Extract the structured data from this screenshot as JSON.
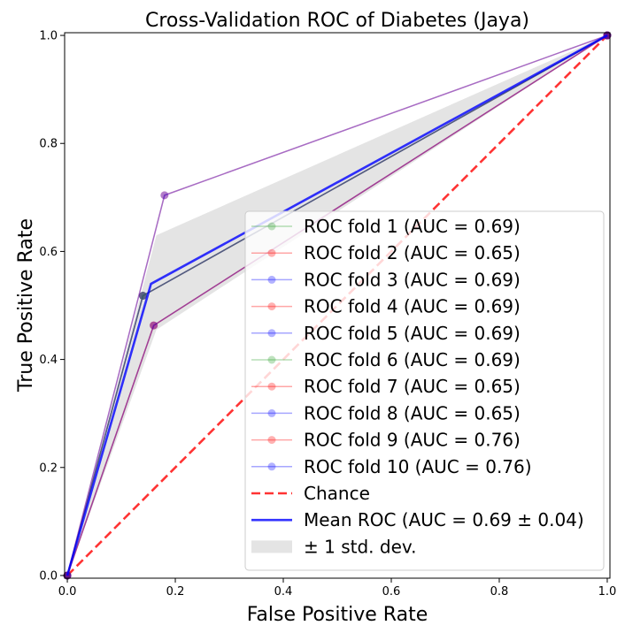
{
  "chart_data": {
    "type": "line",
    "title": "Cross-Validation ROC of Diabetes (Jaya)",
    "xlabel": "False Positive Rate",
    "ylabel": "True Positive Rate",
    "xlim": [
      -0.005,
      1.005
    ],
    "ylim": [
      -0.005,
      1.005
    ],
    "xticks": [
      "0.0",
      "0.2",
      "0.4",
      "0.6",
      "0.8",
      "1.0"
    ],
    "yticks": [
      "0.0",
      "0.2",
      "0.4",
      "0.6",
      "0.8",
      "1.0"
    ],
    "grid": false,
    "legend_position": "lower-right",
    "series": [
      {
        "name": "ROC fold 1 (AUC = 0.69)",
        "color": "#2ca02c",
        "x": [
          0,
          0.14,
          1
        ],
        "y": [
          0,
          0.518,
          1
        ]
      },
      {
        "name": "ROC fold 2 (AUC = 0.65)",
        "color": "#ff0000",
        "x": [
          0,
          0.16,
          1
        ],
        "y": [
          0,
          0.463,
          1
        ]
      },
      {
        "name": "ROC fold 3 (AUC = 0.69)",
        "color": "#0000ff",
        "x": [
          0,
          0.14,
          1
        ],
        "y": [
          0,
          0.518,
          1
        ]
      },
      {
        "name": "ROC fold 4 (AUC = 0.69)",
        "color": "#ff0000",
        "x": [
          0,
          0.14,
          1
        ],
        "y": [
          0,
          0.518,
          1
        ]
      },
      {
        "name": "ROC fold 5 (AUC = 0.69)",
        "color": "#0000ff",
        "x": [
          0,
          0.14,
          1
        ],
        "y": [
          0,
          0.518,
          1
        ]
      },
      {
        "name": "ROC fold 6 (AUC = 0.69)",
        "color": "#2ca02c",
        "x": [
          0,
          0.14,
          1
        ],
        "y": [
          0,
          0.518,
          1
        ]
      },
      {
        "name": "ROC fold 7 (AUC = 0.65)",
        "color": "#ff0000",
        "x": [
          0,
          0.16,
          1
        ],
        "y": [
          0,
          0.463,
          1
        ]
      },
      {
        "name": "ROC fold 8 (AUC = 0.65)",
        "color": "#0000ff",
        "x": [
          0,
          0.16,
          1
        ],
        "y": [
          0,
          0.463,
          1
        ]
      },
      {
        "name": "ROC fold 9 (AUC = 0.76)",
        "color": "#ff0000",
        "x": [
          0,
          0.18,
          1
        ],
        "y": [
          0,
          0.704,
          1
        ]
      },
      {
        "name": "ROC fold 10 (AUC = 0.76)",
        "color": "#0000ff",
        "x": [
          0,
          0.18,
          1
        ],
        "y": [
          0,
          0.704,
          1
        ]
      }
    ],
    "chance": {
      "name": "Chance",
      "color": "#ff0000",
      "x": [
        0,
        1
      ],
      "y": [
        0,
        1
      ]
    },
    "mean": {
      "name": "Mean ROC (AUC = 0.69 ± 0.04)",
      "color": "#0000ff",
      "x": [
        0,
        0.155,
        1
      ],
      "y": [
        0,
        0.54,
        1
      ]
    },
    "std_band": {
      "name": "± 1 std. dev.",
      "color": "#bbbbbb",
      "x": [
        0,
        0.165,
        1
      ],
      "upper": [
        0,
        0.63,
        1
      ],
      "lower": [
        0,
        0.455,
        1
      ]
    }
  }
}
